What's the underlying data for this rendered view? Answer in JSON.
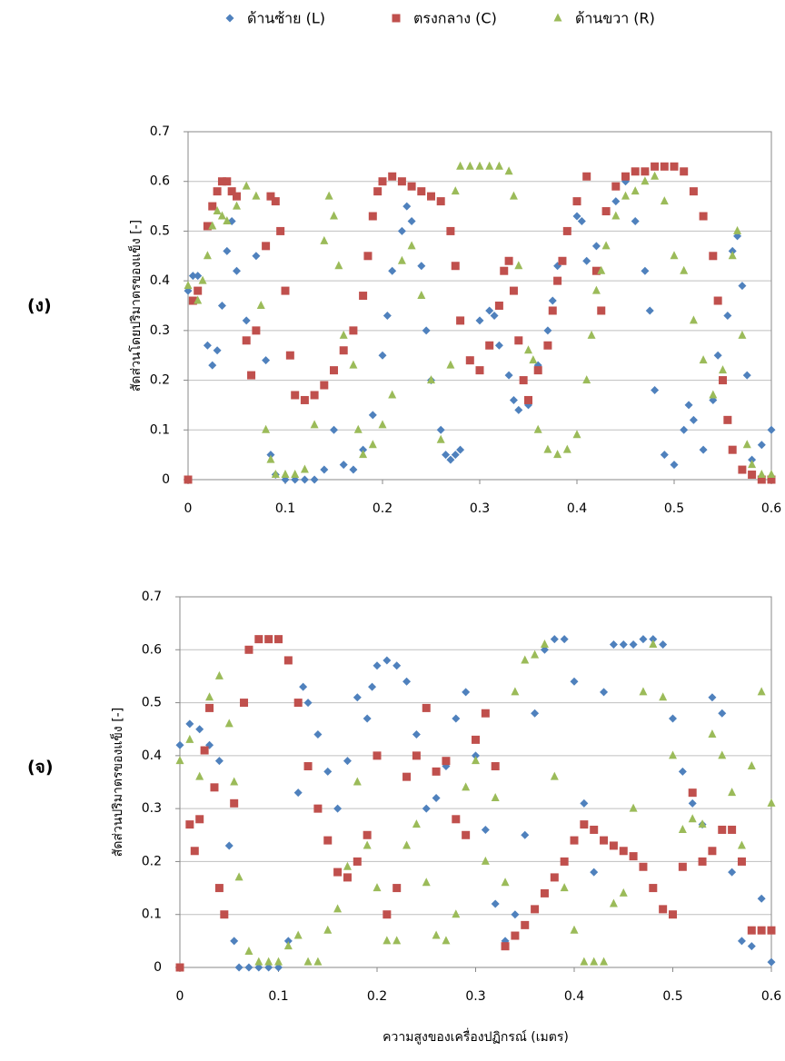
{
  "chart_data": [
    {
      "type": "scatter",
      "label": "(ง)",
      "y_label": "สัดส่วนโดยปริมาตรของแข็ง [-]",
      "xlim": [
        0,
        0.6
      ],
      "ylim": [
        0,
        0.7
      ],
      "xticks": [
        0,
        0.1,
        0.2,
        0.3,
        0.4,
        0.5,
        0.6
      ],
      "yticks": [
        0,
        0.1,
        0.2,
        0.3,
        0.4,
        0.5,
        0.6,
        0.7
      ],
      "grid": true,
      "series": [
        {
          "name": "ด้านซ้าย (L)",
          "color": "#4f81bd",
          "marker": "diamond",
          "x": [
            0,
            0.005,
            0.01,
            0.02,
            0.025,
            0.03,
            0.035,
            0.04,
            0.045,
            0.05,
            0.06,
            0.07,
            0.08,
            0.085,
            0.09,
            0.1,
            0.11,
            0.12,
            0.13,
            0.14,
            0.15,
            0.16,
            0.17,
            0.18,
            0.19,
            0.2,
            0.205,
            0.21,
            0.22,
            0.225,
            0.23,
            0.24,
            0.245,
            0.25,
            0.26,
            0.265,
            0.27,
            0.275,
            0.28,
            0.29,
            0.3,
            0.31,
            0.315,
            0.32,
            0.33,
            0.335,
            0.34,
            0.35,
            0.36,
            0.37,
            0.375,
            0.38,
            0.39,
            0.4,
            0.405,
            0.41,
            0.42,
            0.43,
            0.44,
            0.45,
            0.46,
            0.47,
            0.475,
            0.48,
            0.49,
            0.5,
            0.51,
            0.515,
            0.52,
            0.53,
            0.54,
            0.545,
            0.555,
            0.56,
            0.565,
            0.57,
            0.575,
            0.58,
            0.59,
            0.6
          ],
          "values": [
            0.38,
            0.41,
            0.41,
            0.27,
            0.23,
            0.26,
            0.35,
            0.46,
            0.52,
            0.42,
            0.32,
            0.45,
            0.24,
            0.05,
            0.01,
            0,
            0,
            0,
            0,
            0.02,
            0.1,
            0.03,
            0.02,
            0.06,
            0.13,
            0.25,
            0.33,
            0.42,
            0.5,
            0.55,
            0.52,
            0.43,
            0.3,
            0.2,
            0.1,
            0.05,
            0.04,
            0.05,
            0.06,
            0.24,
            0.32,
            0.34,
            0.33,
            0.27,
            0.21,
            0.16,
            0.14,
            0.15,
            0.23,
            0.3,
            0.36,
            0.43,
            0.5,
            0.53,
            0.52,
            0.44,
            0.47,
            0.54,
            0.56,
            0.6,
            0.52,
            0.42,
            0.34,
            0.18,
            0.05,
            0.03,
            0.1,
            0.15,
            0.12,
            0.06,
            0.16,
            0.25,
            0.33,
            0.46,
            0.49,
            0.39,
            0.21,
            0.04,
            0.07,
            0.1
          ]
        },
        {
          "name": "ตรงกลาง (C)",
          "color": "#c0504d",
          "marker": "square",
          "x": [
            0,
            0.005,
            0.01,
            0.02,
            0.025,
            0.03,
            0.035,
            0.04,
            0.045,
            0.05,
            0.06,
            0.065,
            0.07,
            0.08,
            0.085,
            0.09,
            0.095,
            0.1,
            0.105,
            0.11,
            0.12,
            0.13,
            0.14,
            0.15,
            0.16,
            0.17,
            0.18,
            0.185,
            0.19,
            0.195,
            0.2,
            0.21,
            0.22,
            0.23,
            0.24,
            0.25,
            0.26,
            0.27,
            0.275,
            0.28,
            0.29,
            0.3,
            0.31,
            0.32,
            0.325,
            0.33,
            0.335,
            0.34,
            0.345,
            0.35,
            0.36,
            0.37,
            0.375,
            0.38,
            0.385,
            0.39,
            0.4,
            0.41,
            0.42,
            0.425,
            0.43,
            0.44,
            0.45,
            0.46,
            0.47,
            0.48,
            0.49,
            0.5,
            0.51,
            0.52,
            0.53,
            0.54,
            0.545,
            0.55,
            0.555,
            0.56,
            0.57,
            0.58,
            0.59,
            0.6
          ],
          "values": [
            0,
            0.36,
            0.38,
            0.51,
            0.55,
            0.58,
            0.6,
            0.6,
            0.58,
            0.57,
            0.28,
            0.21,
            0.3,
            0.47,
            0.57,
            0.56,
            0.5,
            0.38,
            0.25,
            0.17,
            0.16,
            0.17,
            0.19,
            0.22,
            0.26,
            0.3,
            0.37,
            0.45,
            0.53,
            0.58,
            0.6,
            0.61,
            0.6,
            0.59,
            0.58,
            0.57,
            0.56,
            0.5,
            0.43,
            0.32,
            0.24,
            0.22,
            0.27,
            0.35,
            0.42,
            0.44,
            0.38,
            0.28,
            0.2,
            0.16,
            0.22,
            0.27,
            0.34,
            0.4,
            0.44,
            0.5,
            0.56,
            0.61,
            0.42,
            0.34,
            0.54,
            0.59,
            0.61,
            0.62,
            0.62,
            0.63,
            0.63,
            0.63,
            0.62,
            0.58,
            0.53,
            0.45,
            0.36,
            0.2,
            0.12,
            0.06,
            0.02,
            0.01,
            0,
            0
          ]
        },
        {
          "name": "ด้านขวา (R)",
          "color": "#9bbb59",
          "marker": "triangle",
          "x": [
            0,
            0.01,
            0.015,
            0.02,
            0.025,
            0.03,
            0.035,
            0.04,
            0.05,
            0.06,
            0.07,
            0.075,
            0.08,
            0.085,
            0.09,
            0.1,
            0.11,
            0.12,
            0.13,
            0.14,
            0.145,
            0.15,
            0.155,
            0.16,
            0.17,
            0.175,
            0.18,
            0.19,
            0.2,
            0.21,
            0.22,
            0.23,
            0.24,
            0.25,
            0.26,
            0.27,
            0.275,
            0.28,
            0.29,
            0.3,
            0.31,
            0.32,
            0.33,
            0.335,
            0.34,
            0.35,
            0.355,
            0.36,
            0.37,
            0.38,
            0.39,
            0.4,
            0.41,
            0.415,
            0.42,
            0.425,
            0.43,
            0.44,
            0.45,
            0.46,
            0.47,
            0.48,
            0.49,
            0.5,
            0.51,
            0.52,
            0.53,
            0.54,
            0.55,
            0.56,
            0.565,
            0.57,
            0.575,
            0.58,
            0.59,
            0.6
          ],
          "values": [
            0.39,
            0.36,
            0.4,
            0.45,
            0.51,
            0.54,
            0.53,
            0.52,
            0.55,
            0.59,
            0.57,
            0.35,
            0.1,
            0.04,
            0.01,
            0.01,
            0.01,
            0.02,
            0.11,
            0.48,
            0.57,
            0.53,
            0.43,
            0.29,
            0.23,
            0.1,
            0.05,
            0.07,
            0.11,
            0.17,
            0.44,
            0.47,
            0.37,
            0.2,
            0.08,
            0.23,
            0.58,
            0.63,
            0.63,
            0.63,
            0.63,
            0.63,
            0.62,
            0.57,
            0.43,
            0.26,
            0.24,
            0.1,
            0.06,
            0.05,
            0.06,
            0.09,
            0.2,
            0.29,
            0.38,
            0.42,
            0.47,
            0.53,
            0.57,
            0.58,
            0.6,
            0.61,
            0.56,
            0.45,
            0.42,
            0.32,
            0.24,
            0.17,
            0.22,
            0.45,
            0.5,
            0.29,
            0.07,
            0.03,
            0.01,
            0.01
          ]
        }
      ]
    },
    {
      "type": "scatter",
      "label": "(จ)",
      "y_label": "สัดส่วนปริมาตรของแข็ง [-]",
      "x_label": "ความสูงของเครื่องปฏิกรณ์ (เมตร)",
      "xlim": [
        0,
        0.6
      ],
      "ylim": [
        0,
        0.7
      ],
      "xticks": [
        0,
        0.1,
        0.2,
        0.3,
        0.4,
        0.5,
        0.6
      ],
      "yticks": [
        0,
        0.1,
        0.2,
        0.3,
        0.4,
        0.5,
        0.6,
        0.7
      ],
      "grid": true,
      "series": [
        {
          "color": "#4f81bd",
          "marker": "diamond",
          "x": [
            0,
            0.01,
            0.02,
            0.03,
            0.04,
            0.05,
            0.055,
            0.06,
            0.07,
            0.08,
            0.09,
            0.1,
            0.11,
            0.12,
            0.125,
            0.13,
            0.14,
            0.15,
            0.16,
            0.17,
            0.18,
            0.19,
            0.195,
            0.2,
            0.21,
            0.22,
            0.23,
            0.24,
            0.25,
            0.26,
            0.27,
            0.28,
            0.29,
            0.3,
            0.31,
            0.32,
            0.33,
            0.34,
            0.35,
            0.36,
            0.37,
            0.38,
            0.39,
            0.4,
            0.41,
            0.42,
            0.43,
            0.44,
            0.45,
            0.46,
            0.47,
            0.48,
            0.49,
            0.5,
            0.51,
            0.52,
            0.53,
            0.54,
            0.55,
            0.56,
            0.57,
            0.58,
            0.59,
            0.6
          ],
          "values": [
            0.42,
            0.46,
            0.45,
            0.42,
            0.39,
            0.23,
            0.05,
            0,
            0,
            0,
            0,
            0,
            0.05,
            0.33,
            0.53,
            0.5,
            0.44,
            0.37,
            0.3,
            0.39,
            0.51,
            0.47,
            0.53,
            0.57,
            0.58,
            0.57,
            0.54,
            0.44,
            0.3,
            0.32,
            0.38,
            0.47,
            0.52,
            0.4,
            0.26,
            0.12,
            0.05,
            0.1,
            0.25,
            0.48,
            0.6,
            0.62,
            0.62,
            0.54,
            0.31,
            0.18,
            0.52,
            0.61,
            0.61,
            0.61,
            0.62,
            0.62,
            0.61,
            0.47,
            0.37,
            0.31,
            0.27,
            0.51,
            0.48,
            0.18,
            0.05,
            0.04,
            0.13,
            0.01
          ]
        },
        {
          "color": "#c0504d",
          "marker": "square",
          "x": [
            0,
            0.01,
            0.015,
            0.02,
            0.025,
            0.03,
            0.035,
            0.04,
            0.045,
            0.055,
            0.065,
            0.07,
            0.08,
            0.09,
            0.1,
            0.11,
            0.12,
            0.13,
            0.14,
            0.15,
            0.16,
            0.17,
            0.18,
            0.19,
            0.2,
            0.21,
            0.22,
            0.23,
            0.24,
            0.25,
            0.26,
            0.27,
            0.28,
            0.29,
            0.3,
            0.31,
            0.32,
            0.33,
            0.34,
            0.35,
            0.36,
            0.37,
            0.38,
            0.39,
            0.4,
            0.41,
            0.42,
            0.43,
            0.44,
            0.45,
            0.46,
            0.47,
            0.48,
            0.49,
            0.5,
            0.51,
            0.52,
            0.53,
            0.54,
            0.55,
            0.56,
            0.57,
            0.58,
            0.59,
            0.6
          ],
          "values": [
            0,
            0.27,
            0.22,
            0.28,
            0.41,
            0.49,
            0.34,
            0.15,
            0.1,
            0.31,
            0.5,
            0.6,
            0.62,
            0.62,
            0.62,
            0.58,
            0.5,
            0.38,
            0.3,
            0.24,
            0.18,
            0.17,
            0.2,
            0.25,
            0.4,
            0.1,
            0.15,
            0.36,
            0.4,
            0.49,
            0.37,
            0.39,
            0.28,
            0.25,
            0.43,
            0.48,
            0.38,
            0.04,
            0.06,
            0.08,
            0.11,
            0.14,
            0.17,
            0.2,
            0.24,
            0.27,
            0.26,
            0.24,
            0.23,
            0.22,
            0.21,
            0.19,
            0.15,
            0.11,
            0.1,
            0.19,
            0.33,
            0.2,
            0.22,
            0.26,
            0.26,
            0.2,
            0.07,
            0.07,
            0.07
          ]
        },
        {
          "color": "#9bbb59",
          "marker": "triangle",
          "x": [
            0,
            0.01,
            0.02,
            0.03,
            0.04,
            0.05,
            0.055,
            0.06,
            0.07,
            0.08,
            0.09,
            0.1,
            0.11,
            0.12,
            0.13,
            0.14,
            0.15,
            0.16,
            0.17,
            0.18,
            0.19,
            0.2,
            0.21,
            0.22,
            0.23,
            0.24,
            0.25,
            0.26,
            0.27,
            0.28,
            0.29,
            0.3,
            0.31,
            0.32,
            0.33,
            0.34,
            0.35,
            0.36,
            0.37,
            0.38,
            0.39,
            0.4,
            0.41,
            0.42,
            0.43,
            0.44,
            0.45,
            0.46,
            0.47,
            0.48,
            0.49,
            0.5,
            0.51,
            0.52,
            0.53,
            0.54,
            0.55,
            0.56,
            0.57,
            0.58,
            0.59,
            0.6
          ],
          "values": [
            0.39,
            0.43,
            0.36,
            0.51,
            0.55,
            0.46,
            0.35,
            0.17,
            0.03,
            0.01,
            0.01,
            0.01,
            0.04,
            0.06,
            0.01,
            0.01,
            0.07,
            0.11,
            0.19,
            0.35,
            0.23,
            0.15,
            0.05,
            0.05,
            0.23,
            0.27,
            0.16,
            0.06,
            0.05,
            0.1,
            0.34,
            0.39,
            0.2,
            0.32,
            0.16,
            0.52,
            0.58,
            0.59,
            0.61,
            0.36,
            0.15,
            0.07,
            0.01,
            0.01,
            0.01,
            0.12,
            0.14,
            0.3,
            0.52,
            0.61,
            0.51,
            0.4,
            0.26,
            0.28,
            0.27,
            0.44,
            0.4,
            0.33,
            0.23,
            0.38,
            0.52,
            0.31
          ]
        }
      ]
    }
  ]
}
